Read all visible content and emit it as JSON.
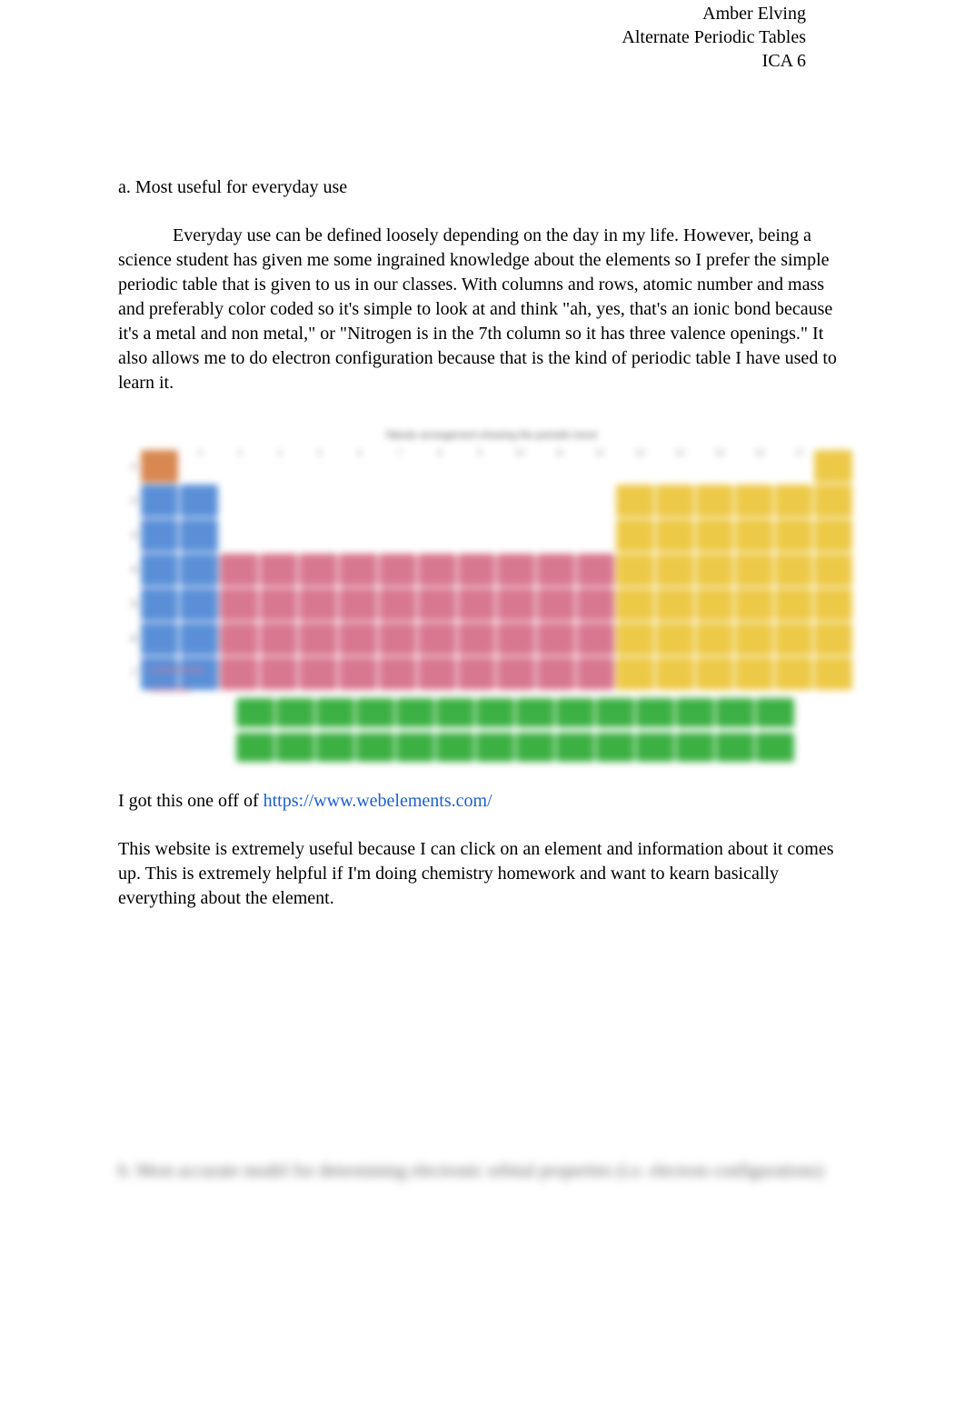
{
  "header": {
    "student_name": "Amber Elving",
    "assignment_title": "Alternate Periodic Tables",
    "class_code": "ICA 6"
  },
  "section_a": {
    "title": "a. Most useful for everyday use",
    "paragraph": "Everyday use can be defined loosely depending on the day in my life. However, being a science student has given me some ingrained knowledge about the elements so I prefer the simple periodic table that is given to us in our classes. With columns and rows, atomic number and mass and preferably color coded so it's simple to look at and think \"ah, yes, that's an ionic bond because it's a metal and non metal,\" or \"Nitrogen is in the 7th column so it has three valence openings.\" It also allows me to do electron configuration because that is the kind of periodic table I have used to learn it."
  },
  "periodic_table": {
    "title_text": "Tabular arrangement showing the periodic trend",
    "group_labels": [
      "1",
      "2",
      "3",
      "4",
      "5",
      "6",
      "7",
      "8",
      "9",
      "10",
      "11",
      "12",
      "13",
      "14",
      "15",
      "16",
      "17",
      "18"
    ],
    "row_labels": [
      "1",
      "2",
      "3",
      "4",
      "5",
      "6",
      "7"
    ],
    "legend_labels": [
      "Lanthanides",
      "Actinides"
    ],
    "colors": {
      "hydrogen": "#d88850",
      "alkali_alkaline": "#5a8fd8",
      "transition": "#d87790",
      "post_transition_nonmetal": "#edc948",
      "lanthanide_actinide": "#3cb043",
      "background": "#ffffff"
    }
  },
  "source": {
    "prefix": "I got this one off of ",
    "url": "https://www.webelements.com/"
  },
  "followup_paragraph": "This website is extremely useful because I can click on an element and information about it comes up. This is extremely helpful if I'm doing chemistry homework and want to kearn basically everything about the element.",
  "blurred_next_section": "b. Most accurate model for determining electronic orbital properties (i.e. electron configurations)"
}
